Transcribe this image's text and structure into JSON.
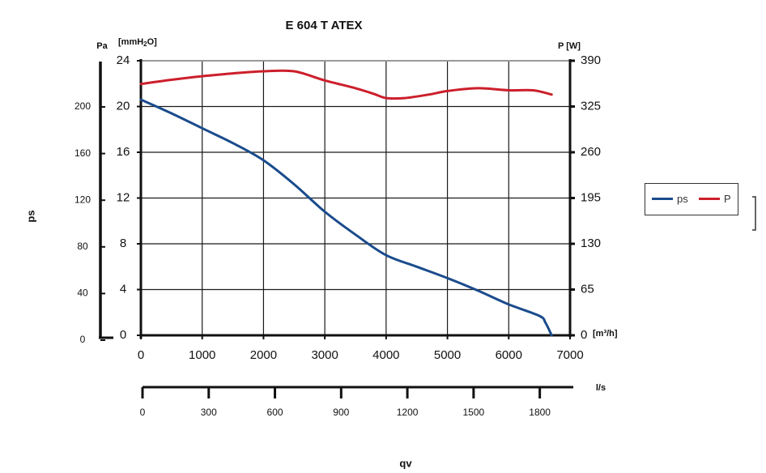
{
  "chart_data": {
    "type": "line",
    "title": "E 604 T ATEX",
    "xlabel": "qv",
    "ylabel": "ps",
    "x_unit_primary": "[m³/h]",
    "x_unit_secondary": "l/s",
    "y_left_outer_unit": "Pa",
    "y_left_inner_unit_main": "[mmH",
    "y_left_inner_unit_sub": "2",
    "y_left_inner_unit_tail": "O]",
    "y_right_unit": "P [W]",
    "xlim": [
      0,
      7000
    ],
    "ylim_mmH2O": [
      0,
      24
    ],
    "ylim_Pa": [
      0,
      235.4
    ],
    "ylim_W": [
      0,
      390
    ],
    "x_ticks_m3h": [
      "0",
      "1000",
      "2000",
      "3000",
      "4000",
      "5000",
      "6000",
      "7000"
    ],
    "x_ticks_ls": [
      {
        "label": "0",
        "value": 0
      },
      {
        "label": "300",
        "value": 300
      },
      {
        "label": "600",
        "value": 600
      },
      {
        "label": "900",
        "value": 900
      },
      {
        "label": "1200",
        "value": 1200
      },
      {
        "label": "1500",
        "value": 1500
      },
      {
        "label": "1800",
        "value": 1800
      }
    ],
    "y_ticks_mmH2O": [
      "0",
      "4",
      "8",
      "12",
      "16",
      "20",
      "24"
    ],
    "y_ticks_Pa": [
      {
        "label": "0",
        "value": 0
      },
      {
        "label": "40",
        "value": 40
      },
      {
        "label": "80",
        "value": 80
      },
      {
        "label": "120",
        "value": 120
      },
      {
        "label": "160",
        "value": 160
      },
      {
        "label": "200",
        "value": 200
      }
    ],
    "y_ticks_W": [
      "0",
      "65",
      "130",
      "195",
      "260",
      "325",
      "390"
    ],
    "grid": true,
    "legend_position": "right",
    "series": [
      {
        "name": "ps",
        "color": "#1a4b8c",
        "axis": "mmH2O",
        "x": [
          0,
          500,
          1000,
          1500,
          2000,
          2500,
          3000,
          3500,
          4000,
          4500,
          5000,
          5500,
          6000,
          6500,
          6600,
          6700
        ],
        "y": [
          20.6,
          19.4,
          18.1,
          16.8,
          15.3,
          13.2,
          10.8,
          8.8,
          7.0,
          6.0,
          5.0,
          3.9,
          2.7,
          1.7,
          1.1,
          0.0
        ]
      },
      {
        "name": "P",
        "color": "#cc1f2b",
        "axis": "W",
        "x": [
          0,
          500,
          1000,
          1500,
          2000,
          2500,
          3000,
          3500,
          3800,
          4000,
          4300,
          4700,
          5000,
          5500,
          6000,
          6400,
          6700
        ],
        "y": [
          357,
          363,
          368,
          372,
          375,
          375,
          362,
          351,
          343,
          337,
          337,
          342,
          347,
          351,
          348,
          348,
          342
        ]
      }
    ]
  }
}
